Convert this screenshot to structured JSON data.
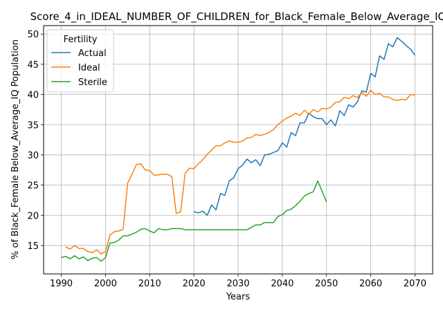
{
  "chart_data": {
    "type": "line",
    "title": "Score_4_in_IDEAL_NUMBER_OF_CHILDREN_for_Black_Female_Below_Average_IQ",
    "xlabel": "Years",
    "ylabel": "% of Black_Female Below_Average_IQ Population",
    "xlim": [
      1986.0,
      2074.0
    ],
    "ylim": [
      10.3,
      51.4
    ],
    "xticks": [
      1990,
      2000,
      2010,
      2020,
      2030,
      2040,
      2050,
      2060,
      2070
    ],
    "yticks": [
      15,
      20,
      25,
      30,
      35,
      40,
      45,
      50
    ],
    "grid": true,
    "legend": {
      "title": "Fertility",
      "placement": "upper-left"
    },
    "series": [
      {
        "name": "Actual",
        "color": "#1f77b4",
        "x": [
          2020,
          2021,
          2022,
          2023,
          2024,
          2025,
          2026,
          2027,
          2028,
          2029,
          2030,
          2031,
          2032,
          2033,
          2034,
          2035,
          2036,
          2037,
          2038,
          2039,
          2040,
          2041,
          2042,
          2043,
          2044,
          2045,
          2046,
          2047,
          2048,
          2049,
          2050,
          2051,
          2052,
          2053,
          2054,
          2055,
          2056,
          2057,
          2058,
          2059,
          2060,
          2061,
          2062,
          2063,
          2064,
          2065,
          2066,
          2067,
          2068,
          2069,
          2070
        ],
        "y": [
          20.6,
          20.4,
          20.7,
          20.0,
          21.7,
          20.9,
          23.6,
          23.3,
          25.7,
          26.2,
          27.7,
          28.3,
          29.3,
          28.7,
          29.2,
          28.2,
          30.0,
          30.1,
          30.4,
          30.7,
          32.0,
          31.3,
          33.7,
          33.2,
          35.3,
          35.3,
          36.9,
          36.3,
          36.0,
          36.0,
          35.0,
          35.8,
          34.8,
          37.3,
          36.5,
          38.3,
          37.9,
          38.8,
          40.6,
          40.4,
          43.5,
          42.9,
          46.4,
          45.8,
          48.4,
          47.9,
          49.4,
          48.8,
          48.1,
          47.5,
          46.5
        ]
      },
      {
        "name": "Ideal",
        "color": "#ff7f0e",
        "x": [
          1991,
          1992,
          1993,
          1994,
          1995,
          1996,
          1997,
          1998,
          1999,
          2000,
          2001,
          2002,
          2003,
          2004,
          2005,
          2006,
          2007,
          2008,
          2009,
          2010,
          2011,
          2012,
          2013,
          2014,
          2015,
          2016,
          2017,
          2018,
          2019,
          2020,
          2021,
          2022,
          2023,
          2024,
          2025,
          2026,
          2027,
          2028,
          2029,
          2030,
          2031,
          2032,
          2033,
          2034,
          2035,
          2036,
          2037,
          2038,
          2039,
          2040,
          2041,
          2042,
          2043,
          2044,
          2045,
          2046,
          2047,
          2048,
          2049,
          2050,
          2051,
          2052,
          2053,
          2054,
          2055,
          2056,
          2057,
          2058,
          2059,
          2060,
          2061,
          2062,
          2063,
          2064,
          2065,
          2066,
          2067,
          2068,
          2069,
          2070
        ],
        "y": [
          14.8,
          14.4,
          15.0,
          14.5,
          14.5,
          14.0,
          13.8,
          14.3,
          13.6,
          14.0,
          16.7,
          17.3,
          17.4,
          17.7,
          25.3,
          26.8,
          28.4,
          28.5,
          27.5,
          27.4,
          26.6,
          26.7,
          26.8,
          26.8,
          26.4,
          20.3,
          20.6,
          26.9,
          27.8,
          27.7,
          28.5,
          29.2,
          30.1,
          30.8,
          31.5,
          31.5,
          32.0,
          32.3,
          32.1,
          32.1,
          32.3,
          32.8,
          32.9,
          33.4,
          33.2,
          33.4,
          33.7,
          34.2,
          35.0,
          35.6,
          36.1,
          36.4,
          36.9,
          36.5,
          37.4,
          36.7,
          37.5,
          37.1,
          37.7,
          37.6,
          37.9,
          38.7,
          38.8,
          39.5,
          39.3,
          39.8,
          39.5,
          40.3,
          39.7,
          40.7,
          40.0,
          40.2,
          39.6,
          39.6,
          39.2,
          39.0,
          39.2,
          39.1,
          40.0,
          39.9
        ]
      },
      {
        "name": "Sterile",
        "color": "#2ca02c",
        "x": [
          1990,
          1991,
          1992,
          1993,
          1994,
          1995,
          1996,
          1997,
          1998,
          1999,
          2000,
          2001,
          2002,
          2003,
          2004,
          2005,
          2006,
          2007,
          2008,
          2009,
          2010,
          2011,
          2012,
          2013,
          2014,
          2015,
          2016,
          2017,
          2018,
          2019,
          2020,
          2021,
          2022,
          2023,
          2024,
          2025,
          2026,
          2027,
          2028,
          2029,
          2030,
          2031,
          2032,
          2033,
          2034,
          2035,
          2036,
          2037,
          2038,
          2039,
          2040,
          2041,
          2042,
          2043,
          2044,
          2045,
          2046,
          2047,
          2048,
          2049,
          2050
        ],
        "y": [
          13.0,
          13.2,
          12.8,
          13.3,
          12.8,
          13.1,
          12.5,
          12.9,
          13.0,
          12.4,
          13.0,
          15.4,
          15.5,
          15.9,
          16.6,
          16.6,
          16.9,
          17.2,
          17.7,
          17.8,
          17.4,
          17.1,
          17.8,
          17.6,
          17.6,
          17.8,
          17.8,
          17.8,
          17.6,
          17.6,
          17.6,
          17.6,
          17.6,
          17.6,
          17.6,
          17.6,
          17.6,
          17.6,
          17.6,
          17.6,
          17.6,
          17.6,
          17.6,
          18.0,
          18.4,
          18.4,
          18.8,
          18.8,
          18.8,
          19.8,
          20.1,
          20.8,
          21.0,
          21.6,
          22.3,
          23.2,
          23.6,
          23.9,
          25.7,
          24.0,
          22.2
        ]
      }
    ]
  }
}
